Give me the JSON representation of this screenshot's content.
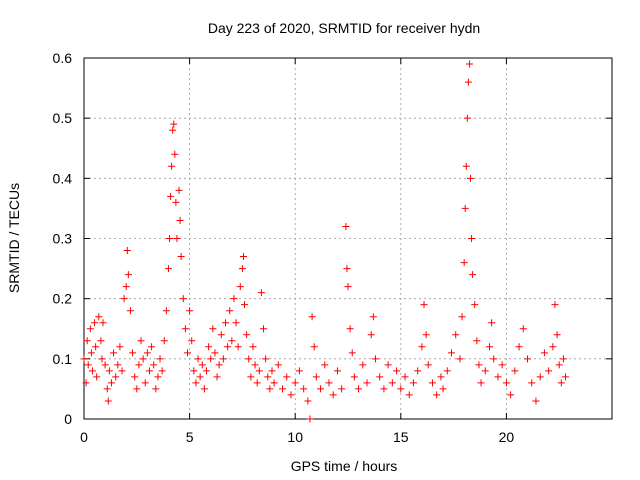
{
  "chart_data": {
    "type": "scatter",
    "title": "Day 223 of 2020, SRMTID for receiver hydn",
    "xlabel": "GPS time / hours",
    "ylabel": "SRMTID / TECUs",
    "xlim": [
      0,
      25
    ],
    "ylim": [
      0,
      0.6
    ],
    "xticks": [
      0,
      5,
      10,
      15,
      20
    ],
    "xtick_labels": [
      "0",
      "5",
      "10",
      "15",
      "20"
    ],
    "yticks": [
      0,
      0.1,
      0.2,
      0.3,
      0.4,
      0.5,
      0.6
    ],
    "ytick_labels": [
      "0",
      "0.1",
      "0.2",
      "0.3",
      "0.4",
      "0.5",
      "0.6"
    ],
    "grid": true,
    "marker": "+",
    "series": [
      {
        "name": "SRMTID",
        "color": "#ff0000",
        "points": [
          [
            0.0,
            0.1
          ],
          [
            0.1,
            0.06
          ],
          [
            0.15,
            0.13
          ],
          [
            0.2,
            0.09
          ],
          [
            0.3,
            0.15
          ],
          [
            0.35,
            0.11
          ],
          [
            0.4,
            0.08
          ],
          [
            0.5,
            0.16
          ],
          [
            0.55,
            0.12
          ],
          [
            0.6,
            0.07
          ],
          [
            0.7,
            0.17
          ],
          [
            0.8,
            0.13
          ],
          [
            0.85,
            0.1
          ],
          [
            0.9,
            0.16
          ],
          [
            1.0,
            0.09
          ],
          [
            1.1,
            0.05
          ],
          [
            1.15,
            0.03
          ],
          [
            1.2,
            0.08
          ],
          [
            1.3,
            0.06
          ],
          [
            1.4,
            0.11
          ],
          [
            1.5,
            0.07
          ],
          [
            1.6,
            0.09
          ],
          [
            1.7,
            0.12
          ],
          [
            1.8,
            0.08
          ],
          [
            1.9,
            0.2
          ],
          [
            2.0,
            0.22
          ],
          [
            2.05,
            0.28
          ],
          [
            2.1,
            0.24
          ],
          [
            2.2,
            0.18
          ],
          [
            2.3,
            0.11
          ],
          [
            2.4,
            0.07
          ],
          [
            2.5,
            0.05
          ],
          [
            2.6,
            0.09
          ],
          [
            2.7,
            0.13
          ],
          [
            2.8,
            0.1
          ],
          [
            2.9,
            0.06
          ],
          [
            3.0,
            0.11
          ],
          [
            3.1,
            0.08
          ],
          [
            3.2,
            0.12
          ],
          [
            3.3,
            0.09
          ],
          [
            3.4,
            0.05
          ],
          [
            3.5,
            0.07
          ],
          [
            3.6,
            0.1
          ],
          [
            3.7,
            0.08
          ],
          [
            3.8,
            0.13
          ],
          [
            3.9,
            0.18
          ],
          [
            4.0,
            0.25
          ],
          [
            4.05,
            0.3
          ],
          [
            4.1,
            0.37
          ],
          [
            4.15,
            0.42
          ],
          [
            4.2,
            0.48
          ],
          [
            4.25,
            0.49
          ],
          [
            4.3,
            0.44
          ],
          [
            4.35,
            0.36
          ],
          [
            4.4,
            0.3
          ],
          [
            4.5,
            0.38
          ],
          [
            4.55,
            0.33
          ],
          [
            4.6,
            0.27
          ],
          [
            4.7,
            0.2
          ],
          [
            4.8,
            0.15
          ],
          [
            4.9,
            0.11
          ],
          [
            5.0,
            0.18
          ],
          [
            5.1,
            0.13
          ],
          [
            5.2,
            0.08
          ],
          [
            5.3,
            0.06
          ],
          [
            5.4,
            0.1
          ],
          [
            5.5,
            0.07
          ],
          [
            5.6,
            0.09
          ],
          [
            5.7,
            0.05
          ],
          [
            5.8,
            0.08
          ],
          [
            5.9,
            0.12
          ],
          [
            6.0,
            0.1
          ],
          [
            6.1,
            0.15
          ],
          [
            6.2,
            0.11
          ],
          [
            6.3,
            0.07
          ],
          [
            6.4,
            0.09
          ],
          [
            6.5,
            0.14
          ],
          [
            6.6,
            0.1
          ],
          [
            6.7,
            0.16
          ],
          [
            6.8,
            0.12
          ],
          [
            6.9,
            0.18
          ],
          [
            7.0,
            0.13
          ],
          [
            7.1,
            0.2
          ],
          [
            7.2,
            0.16
          ],
          [
            7.3,
            0.12
          ],
          [
            7.4,
            0.22
          ],
          [
            7.5,
            0.25
          ],
          [
            7.55,
            0.27
          ],
          [
            7.6,
            0.19
          ],
          [
            7.7,
            0.14
          ],
          [
            7.8,
            0.1
          ],
          [
            7.9,
            0.07
          ],
          [
            8.0,
            0.12
          ],
          [
            8.1,
            0.09
          ],
          [
            8.2,
            0.06
          ],
          [
            8.3,
            0.08
          ],
          [
            8.4,
            0.21
          ],
          [
            8.5,
            0.15
          ],
          [
            8.6,
            0.1
          ],
          [
            8.7,
            0.07
          ],
          [
            8.8,
            0.05
          ],
          [
            8.9,
            0.08
          ],
          [
            9.0,
            0.06
          ],
          [
            9.2,
            0.09
          ],
          [
            9.4,
            0.05
          ],
          [
            9.6,
            0.07
          ],
          [
            9.8,
            0.04
          ],
          [
            10.0,
            0.06
          ],
          [
            10.2,
            0.08
          ],
          [
            10.4,
            0.05
          ],
          [
            10.6,
            0.03
          ],
          [
            10.7,
            0.0
          ],
          [
            10.8,
            0.17
          ],
          [
            10.9,
            0.12
          ],
          [
            11.0,
            0.07
          ],
          [
            11.2,
            0.05
          ],
          [
            11.4,
            0.09
          ],
          [
            11.6,
            0.06
          ],
          [
            11.8,
            0.04
          ],
          [
            12.0,
            0.08
          ],
          [
            12.2,
            0.05
          ],
          [
            12.4,
            0.32
          ],
          [
            12.45,
            0.25
          ],
          [
            12.5,
            0.22
          ],
          [
            12.6,
            0.15
          ],
          [
            12.7,
            0.11
          ],
          [
            12.8,
            0.07
          ],
          [
            13.0,
            0.05
          ],
          [
            13.2,
            0.09
          ],
          [
            13.4,
            0.06
          ],
          [
            13.6,
            0.14
          ],
          [
            13.7,
            0.17
          ],
          [
            13.8,
            0.1
          ],
          [
            14.0,
            0.07
          ],
          [
            14.2,
            0.05
          ],
          [
            14.4,
            0.09
          ],
          [
            14.6,
            0.06
          ],
          [
            14.8,
            0.08
          ],
          [
            15.0,
            0.05
          ],
          [
            15.2,
            0.07
          ],
          [
            15.4,
            0.04
          ],
          [
            15.6,
            0.06
          ],
          [
            15.8,
            0.08
          ],
          [
            16.0,
            0.12
          ],
          [
            16.1,
            0.19
          ],
          [
            16.2,
            0.14
          ],
          [
            16.3,
            0.09
          ],
          [
            16.5,
            0.06
          ],
          [
            16.7,
            0.04
          ],
          [
            16.9,
            0.07
          ],
          [
            17.0,
            0.05
          ],
          [
            17.2,
            0.08
          ],
          [
            17.4,
            0.11
          ],
          [
            17.6,
            0.14
          ],
          [
            17.8,
            0.1
          ],
          [
            17.9,
            0.17
          ],
          [
            18.0,
            0.26
          ],
          [
            18.05,
            0.35
          ],
          [
            18.1,
            0.42
          ],
          [
            18.15,
            0.5
          ],
          [
            18.2,
            0.56
          ],
          [
            18.25,
            0.59
          ],
          [
            18.3,
            0.4
          ],
          [
            18.35,
            0.3
          ],
          [
            18.4,
            0.24
          ],
          [
            18.5,
            0.19
          ],
          [
            18.6,
            0.13
          ],
          [
            18.7,
            0.09
          ],
          [
            18.8,
            0.06
          ],
          [
            19.0,
            0.08
          ],
          [
            19.2,
            0.12
          ],
          [
            19.3,
            0.16
          ],
          [
            19.4,
            0.1
          ],
          [
            19.6,
            0.07
          ],
          [
            19.8,
            0.09
          ],
          [
            20.0,
            0.06
          ],
          [
            20.2,
            0.04
          ],
          [
            20.4,
            0.08
          ],
          [
            20.6,
            0.12
          ],
          [
            20.8,
            0.15
          ],
          [
            21.0,
            0.1
          ],
          [
            21.2,
            0.06
          ],
          [
            21.4,
            0.03
          ],
          [
            21.6,
            0.07
          ],
          [
            21.8,
            0.11
          ],
          [
            22.0,
            0.08
          ],
          [
            22.2,
            0.12
          ],
          [
            22.3,
            0.19
          ],
          [
            22.4,
            0.14
          ],
          [
            22.5,
            0.09
          ],
          [
            22.6,
            0.06
          ],
          [
            22.7,
            0.1
          ],
          [
            22.8,
            0.07
          ]
        ]
      }
    ]
  }
}
